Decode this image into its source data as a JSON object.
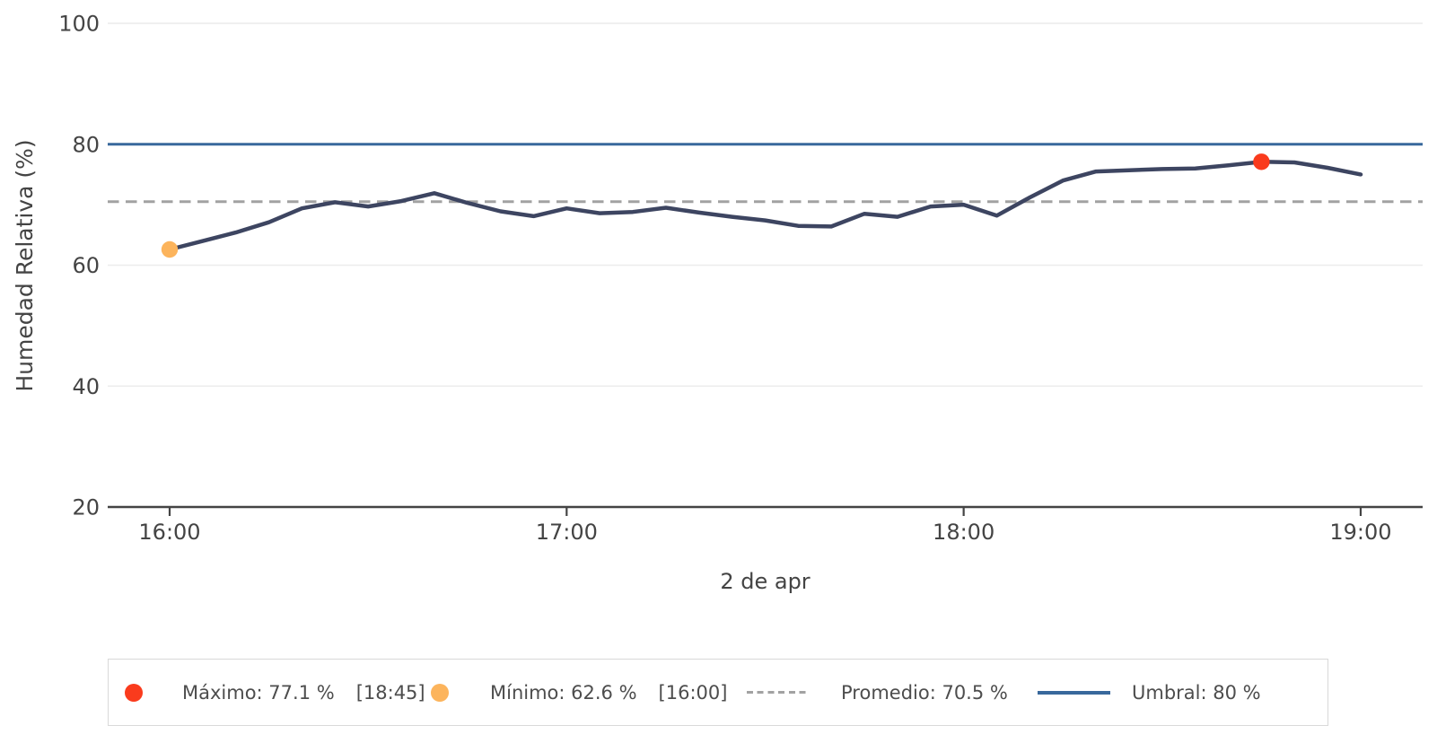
{
  "chart_data": {
    "type": "line",
    "title": "",
    "xlabel": "2 de apr",
    "ylabel": "Humedad Relativa (%)",
    "x": [
      "16:00",
      "16:05",
      "16:10",
      "16:15",
      "16:20",
      "16:25",
      "16:30",
      "16:35",
      "16:40",
      "16:45",
      "16:50",
      "16:55",
      "17:00",
      "17:05",
      "17:10",
      "17:15",
      "17:20",
      "17:25",
      "17:30",
      "17:35",
      "17:40",
      "17:45",
      "17:50",
      "17:55",
      "18:00",
      "18:05",
      "18:10",
      "18:15",
      "18:20",
      "18:25",
      "18:30",
      "18:35",
      "18:40",
      "18:45",
      "18:50",
      "18:55",
      "19:00"
    ],
    "values": [
      62.6,
      64.0,
      65.4,
      67.1,
      69.4,
      70.4,
      69.7,
      70.6,
      71.9,
      70.3,
      68.9,
      68.1,
      69.4,
      68.6,
      68.8,
      69.5,
      68.7,
      68.0,
      67.4,
      66.5,
      66.4,
      68.5,
      68.0,
      69.7,
      70.0,
      68.2,
      71.2,
      74.0,
      75.5,
      75.7,
      75.9,
      76.0,
      76.5,
      77.1,
      77.0,
      76.1,
      75.0
    ],
    "xticks": [
      "16:00",
      "17:00",
      "18:00",
      "19:00"
    ],
    "yticks": [
      20,
      40,
      60,
      80,
      100
    ],
    "ylim": [
      20,
      100
    ],
    "grid": true,
    "legend_position": "bottom",
    "stats": {
      "max": {
        "value": 77.1,
        "time": "18:45"
      },
      "min": {
        "value": 62.6,
        "time": "16:00"
      },
      "mean": 70.5,
      "threshold": 80
    },
    "colors": {
      "series": "#3d4561",
      "max": "#fa3b1d",
      "min": "#fcb45c",
      "mean": "#a2a2a2",
      "threshold": "#38689c",
      "grid": "#ececec",
      "axis": "#444444"
    }
  },
  "legend": {
    "items": [
      {
        "label": "Máximo: 77.1 %",
        "time": "[18:45]",
        "swatch": "red-dot",
        "color": "#fa3b1d"
      },
      {
        "label": "Mínimo: 62.6 %",
        "time": "[16:00]",
        "swatch": "orange-dot",
        "color": "#fcb45c"
      },
      {
        "label": "Promedio: 70.5 %",
        "time": "",
        "swatch": "dashed-line",
        "color": "#a2a2a2"
      },
      {
        "label": "Umbral: 80 %",
        "time": "",
        "swatch": "solid-line",
        "color": "#38689c"
      }
    ]
  }
}
